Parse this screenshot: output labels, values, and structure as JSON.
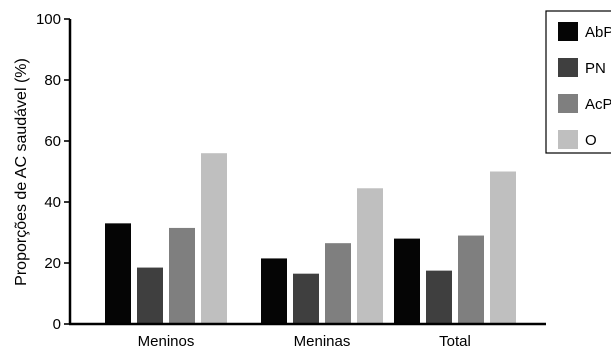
{
  "chart_data": {
    "type": "bar",
    "title": "",
    "xlabel": "",
    "ylabel": "Proporções de AC saudável (%)",
    "ylim": [
      0,
      100
    ],
    "yticks": [
      0,
      20,
      40,
      60,
      80,
      100
    ],
    "categories": [
      "Meninos",
      "Meninas",
      "Total"
    ],
    "series": [
      {
        "name": "AbP",
        "color": "#050505",
        "values": [
          33,
          21.5,
          28
        ]
      },
      {
        "name": "PN",
        "color": "#3f3f3f",
        "values": [
          18.5,
          16.5,
          17.5
        ]
      },
      {
        "name": "AcP",
        "color": "#7f7f7f",
        "values": [
          31.5,
          26.5,
          29
        ]
      },
      {
        "name": "O",
        "color": "#bfbfbf",
        "values": [
          56,
          44.5,
          50
        ]
      }
    ],
    "legend_position": "top-right",
    "grid": false
  }
}
